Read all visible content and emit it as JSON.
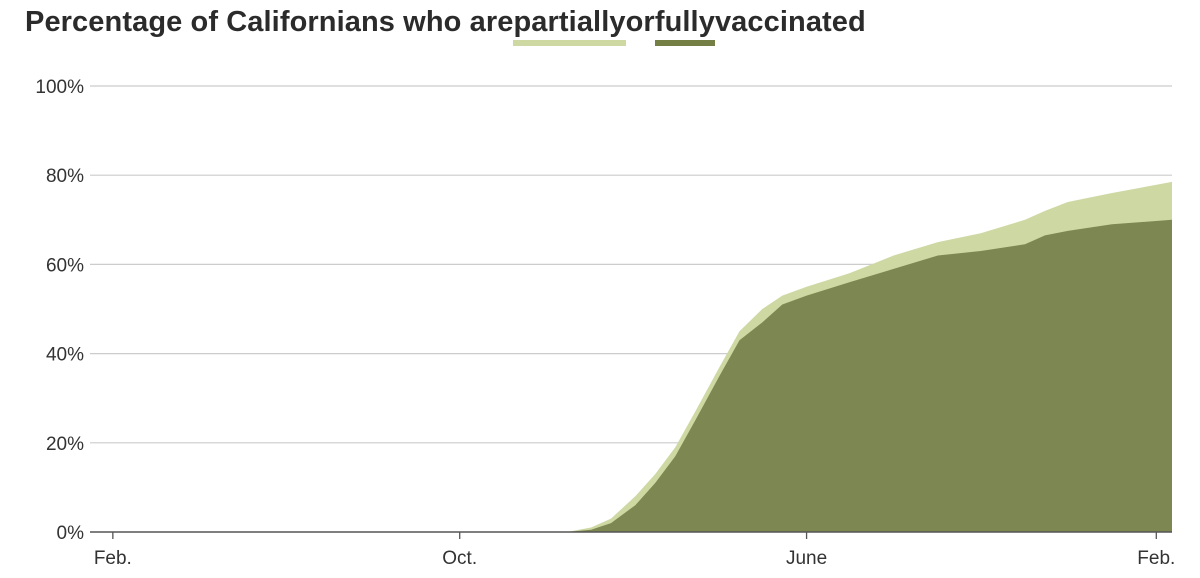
{
  "title": {
    "prefix": "Percentage of Californians who are ",
    "partial_word": "partially",
    "middle": " or ",
    "full_word": "fully",
    "suffix": " vaccinated"
  },
  "colors": {
    "partial": "#cdd8a3",
    "full": "#7d8751",
    "full_legend": "#737f45",
    "grid": "#cccccc",
    "axis": "#555555",
    "text": "#333333"
  },
  "chart_data": {
    "type": "area",
    "ylim": [
      0,
      100
    ],
    "yticks": [
      {
        "value": 0,
        "label": "0%"
      },
      {
        "value": 20,
        "label": "20%"
      },
      {
        "value": 40,
        "label": "40%"
      },
      {
        "value": 60,
        "label": "60%"
      },
      {
        "value": 80,
        "label": "80%"
      },
      {
        "value": 100,
        "label": "100%"
      }
    ],
    "xlim": [
      "2020-01-16",
      "2022-02-12"
    ],
    "xticks": [
      {
        "date": "2020-02-01",
        "label": "Feb."
      },
      {
        "date": "2020-10-01",
        "label": "Oct."
      },
      {
        "date": "2021-06-01",
        "label": "June"
      },
      {
        "date": "2022-02-01",
        "label": "Feb."
      }
    ],
    "series": [
      {
        "name": "partially",
        "points": [
          [
            "2020-12-15",
            0
          ],
          [
            "2021-01-01",
            1
          ],
          [
            "2021-01-15",
            3
          ],
          [
            "2021-02-01",
            8
          ],
          [
            "2021-02-15",
            13
          ],
          [
            "2021-03-01",
            19
          ],
          [
            "2021-03-15",
            27
          ],
          [
            "2021-04-01",
            37
          ],
          [
            "2021-04-15",
            45
          ],
          [
            "2021-05-01",
            50
          ],
          [
            "2021-05-15",
            53
          ],
          [
            "2021-06-01",
            55
          ],
          [
            "2021-07-01",
            58
          ],
          [
            "2021-08-01",
            62
          ],
          [
            "2021-09-01",
            65
          ],
          [
            "2021-10-01",
            67
          ],
          [
            "2021-11-01",
            70
          ],
          [
            "2021-11-15",
            72
          ],
          [
            "2021-12-01",
            74
          ],
          [
            "2022-01-01",
            76
          ],
          [
            "2022-02-12",
            78.5
          ]
        ]
      },
      {
        "name": "fully",
        "points": [
          [
            "2020-12-15",
            0
          ],
          [
            "2021-01-01",
            0.5
          ],
          [
            "2021-01-15",
            2
          ],
          [
            "2021-02-01",
            6
          ],
          [
            "2021-02-15",
            11
          ],
          [
            "2021-03-01",
            17
          ],
          [
            "2021-03-15",
            25
          ],
          [
            "2021-04-01",
            35
          ],
          [
            "2021-04-15",
            43
          ],
          [
            "2021-05-01",
            47
          ],
          [
            "2021-05-15",
            51
          ],
          [
            "2021-06-01",
            53
          ],
          [
            "2021-07-01",
            56
          ],
          [
            "2021-08-01",
            59
          ],
          [
            "2021-09-01",
            62
          ],
          [
            "2021-10-01",
            63
          ],
          [
            "2021-11-01",
            64.5
          ],
          [
            "2021-11-15",
            66.5
          ],
          [
            "2021-12-01",
            67.5
          ],
          [
            "2022-01-01",
            69
          ],
          [
            "2022-02-12",
            70
          ]
        ]
      }
    ]
  }
}
